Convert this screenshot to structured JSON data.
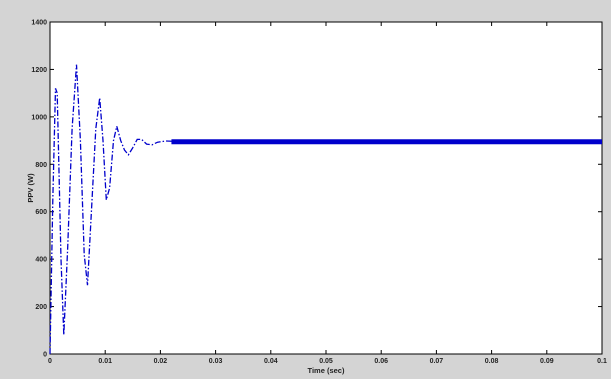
{
  "chart_data": {
    "type": "line",
    "title": "",
    "xlabel": "Time (sec)",
    "ylabel": "PPV (W)",
    "xlim": [
      0,
      0.1
    ],
    "ylim": [
      0,
      1400
    ],
    "grid": false,
    "x_ticks": [
      0,
      0.01,
      0.02,
      0.03,
      0.04,
      0.05,
      0.06,
      0.07,
      0.08,
      0.09,
      0.1
    ],
    "x_tick_labels": [
      "0",
      "0.01",
      "0.02",
      "0.03",
      "0.04",
      "0.05",
      "0.06",
      "0.07",
      "0.08",
      "0.09",
      "0.1"
    ],
    "y_ticks": [
      0,
      200,
      400,
      600,
      800,
      1000,
      1200,
      1400
    ],
    "y_tick_labels": [
      "0",
      "200",
      "400",
      "600",
      "800",
      "1000",
      "1200",
      "1400"
    ],
    "colors": {
      "background": "#d4d4d4",
      "plot_area": "#ffffff",
      "series": "#0000cc",
      "axes": "#000000"
    },
    "series": [
      {
        "line_style": "dash-dot",
        "x": [
          0,
          0.0005,
          0.001,
          0.0013,
          0.002,
          0.0025,
          0.0032,
          0.004,
          0.0048,
          0.0055,
          0.0062,
          0.0068,
          0.0075,
          0.0083,
          0.009,
          0.0096,
          0.0102,
          0.0108,
          0.0115,
          0.0121,
          0.0128,
          0.0135,
          0.0142,
          0.015,
          0.0158,
          0.0166,
          0.0175,
          0.0185,
          0.0195,
          0.021,
          0.023,
          0.025,
          0.03,
          0.04,
          0.05,
          0.06,
          0.07,
          0.08,
          0.09,
          0.1
        ],
        "y": [
          0,
          650,
          1120,
          1100,
          400,
          80,
          450,
          950,
          1220,
          900,
          420,
          290,
          600,
          950,
          1080,
          900,
          650,
          700,
          900,
          960,
          900,
          860,
          840,
          870,
          905,
          905,
          885,
          882,
          893,
          898,
          896,
          895,
          895,
          895,
          895,
          895,
          895,
          895,
          895,
          895
        ]
      }
    ]
  }
}
